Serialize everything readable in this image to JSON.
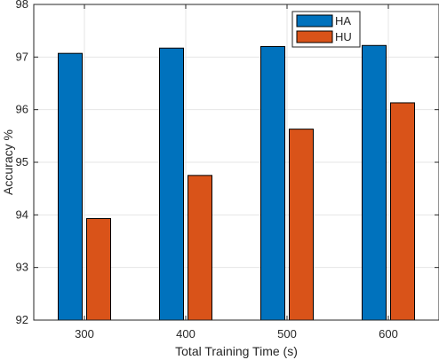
{
  "chart_data": {
    "type": "bar",
    "title": "",
    "xlabel": "Total Training Time (s)",
    "ylabel": "Accuracy %",
    "categories": [
      "300",
      "400",
      "500",
      "600"
    ],
    "ylim": [
      92,
      98
    ],
    "yticks": [
      "92",
      "93",
      "94",
      "95",
      "96",
      "97",
      "98"
    ],
    "grid": true,
    "legend_position": "top-right",
    "series": [
      {
        "name": "HA",
        "color": "#0072BD",
        "values": [
          97.07,
          97.17,
          97.2,
          97.22
        ]
      },
      {
        "name": "HU",
        "color": "#D95319",
        "values": [
          93.93,
          94.75,
          95.63,
          96.13
        ]
      }
    ]
  }
}
